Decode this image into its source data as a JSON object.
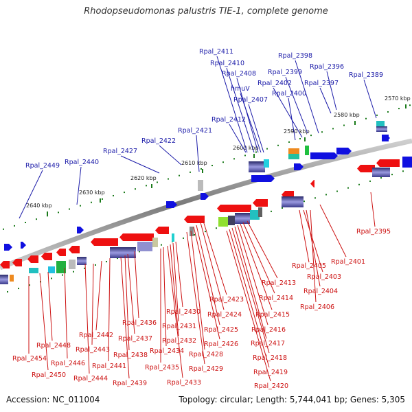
{
  "title": "Rhodopseudomonas palustris TIE-1, complete genome",
  "footer": {
    "accession": "Accession: NC_011004",
    "topology": "Topology: circular; Length: 5,744,041 bp; Genes: 5,305"
  },
  "colors": {
    "forward": "#1010e0",
    "reverse": "#ee1010",
    "label_fwd": "#1a1aa8",
    "label_rev": "#cc1010",
    "backbone": "#8a8a8a",
    "tick": "#1a7a1a"
  },
  "kbp_ticks": [
    "2570 kbp",
    "2580 kbp",
    "2590 kbp",
    "2600 kbp",
    "2610 kbp",
    "2620 kbp",
    "2630 kbp",
    "2640 kbp"
  ],
  "top_labels": [
    "Rpal_2411",
    "Rpal_2410",
    "Rpal_2408",
    "hmuV",
    "Rpal_2407",
    "Rpal_2412",
    "Rpal_2398",
    "Rpal_2399",
    "Rpal_2402",
    "Rpal_2400",
    "Rpal_2396",
    "Rpal_2397",
    "Rpal_2389",
    "Rpal_2421",
    "Rpal_2422",
    "Rpal_2427",
    "Rpal_2440",
    "Rpal_2449"
  ],
  "bottom_labels": [
    "Rpal_2395",
    "Rpal_2401",
    "Rpal_2405",
    "Rpal_2403",
    "Rpal_2404",
    "Rpal_2406",
    "Rpal_2413",
    "Rpal_2414",
    "Rpal_2415",
    "Rpal_2416",
    "Rpal_2417",
    "Rpal_2418",
    "Rpal_2419",
    "Rpal_2420",
    "Rpal_2423",
    "Rpal_2424",
    "Rpal_2425",
    "Rpal_2426",
    "Rpal_2428",
    "Rpal_2429",
    "Rpal_2430",
    "Rpal_2431",
    "Rpal_2432",
    "Rpal_2433",
    "Rpal_2434",
    "Rpal_2435",
    "Rpal_2436",
    "Rpal_2437",
    "Rpal_2438",
    "Rpal_2439",
    "Rpal_2441",
    "Rpal_2442",
    "Rpal_2443",
    "Rpal_2444",
    "Rpal_2446",
    "Rpal_2448",
    "Rpal_2450",
    "Rpal_2454"
  ]
}
